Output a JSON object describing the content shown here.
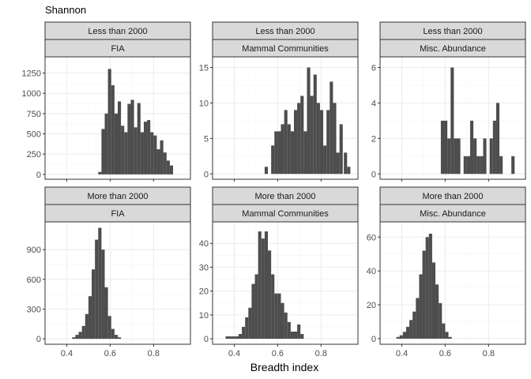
{
  "chart_data": {
    "type": "bar",
    "title": "Shannon",
    "xlabel": "Breadth index",
    "ylabel": "",
    "xlim": [
      0.3,
      0.97
    ],
    "x_ticks": [
      0.4,
      0.6,
      0.8
    ],
    "x_tick_labels": [
      "0.4",
      "0.6",
      "0.8"
    ],
    "grid": true,
    "panels": [
      {
        "row_label": "Less than 2000",
        "col_label": "FIA",
        "ylim": [
          -60,
          1450
        ],
        "y_ticks": [
          0,
          250,
          500,
          750,
          1000,
          1250
        ],
        "y_tick_labels": [
          "0",
          "250",
          "500",
          "750",
          "1000",
          "1250"
        ],
        "bins": [
          {
            "x0": 0.545,
            "x1": 0.56,
            "count": 30
          },
          {
            "x0": 0.56,
            "x1": 0.575,
            "count": 560
          },
          {
            "x0": 0.575,
            "x1": 0.59,
            "count": 750
          },
          {
            "x0": 0.59,
            "x1": 0.605,
            "count": 1300
          },
          {
            "x0": 0.605,
            "x1": 0.62,
            "count": 1100
          },
          {
            "x0": 0.62,
            "x1": 0.635,
            "count": 750
          },
          {
            "x0": 0.635,
            "x1": 0.65,
            "count": 900
          },
          {
            "x0": 0.65,
            "x1": 0.665,
            "count": 600
          },
          {
            "x0": 0.665,
            "x1": 0.68,
            "count": 520
          },
          {
            "x0": 0.68,
            "x1": 0.695,
            "count": 870
          },
          {
            "x0": 0.695,
            "x1": 0.71,
            "count": 920
          },
          {
            "x0": 0.71,
            "x1": 0.725,
            "count": 580
          },
          {
            "x0": 0.725,
            "x1": 0.74,
            "count": 880
          },
          {
            "x0": 0.74,
            "x1": 0.755,
            "count": 520
          },
          {
            "x0": 0.755,
            "x1": 0.77,
            "count": 650
          },
          {
            "x0": 0.77,
            "x1": 0.785,
            "count": 670
          },
          {
            "x0": 0.785,
            "x1": 0.8,
            "count": 520
          },
          {
            "x0": 0.8,
            "x1": 0.815,
            "count": 480
          },
          {
            "x0": 0.815,
            "x1": 0.83,
            "count": 310
          },
          {
            "x0": 0.83,
            "x1": 0.845,
            "count": 420
          },
          {
            "x0": 0.845,
            "x1": 0.86,
            "count": 270
          },
          {
            "x0": 0.86,
            "x1": 0.875,
            "count": 170
          },
          {
            "x0": 0.875,
            "x1": 0.89,
            "count": 110
          }
        ]
      },
      {
        "row_label": "Less than 2000",
        "col_label": "Mammal Communities",
        "ylim": [
          -0.75,
          16.5
        ],
        "y_ticks": [
          0,
          5,
          10,
          15
        ],
        "y_tick_labels": [
          "0",
          "5",
          "10",
          "15"
        ],
        "bins": [
          {
            "x0": 0.54,
            "x1": 0.555,
            "count": 1
          },
          {
            "x0": 0.57,
            "x1": 0.585,
            "count": 4
          },
          {
            "x0": 0.585,
            "x1": 0.6,
            "count": 6
          },
          {
            "x0": 0.6,
            "x1": 0.615,
            "count": 6
          },
          {
            "x0": 0.615,
            "x1": 0.63,
            "count": 7
          },
          {
            "x0": 0.63,
            "x1": 0.645,
            "count": 9
          },
          {
            "x0": 0.645,
            "x1": 0.66,
            "count": 7
          },
          {
            "x0": 0.66,
            "x1": 0.675,
            "count": 6
          },
          {
            "x0": 0.675,
            "x1": 0.69,
            "count": 9
          },
          {
            "x0": 0.69,
            "x1": 0.705,
            "count": 10
          },
          {
            "x0": 0.705,
            "x1": 0.72,
            "count": 11
          },
          {
            "x0": 0.72,
            "x1": 0.735,
            "count": 6
          },
          {
            "x0": 0.735,
            "x1": 0.75,
            "count": 15
          },
          {
            "x0": 0.75,
            "x1": 0.765,
            "count": 11
          },
          {
            "x0": 0.765,
            "x1": 0.78,
            "count": 14
          },
          {
            "x0": 0.78,
            "x1": 0.795,
            "count": 10
          },
          {
            "x0": 0.795,
            "x1": 0.81,
            "count": 9
          },
          {
            "x0": 0.81,
            "x1": 0.825,
            "count": 4
          },
          {
            "x0": 0.825,
            "x1": 0.84,
            "count": 9
          },
          {
            "x0": 0.84,
            "x1": 0.855,
            "count": 13
          },
          {
            "x0": 0.855,
            "x1": 0.87,
            "count": 10
          },
          {
            "x0": 0.87,
            "x1": 0.885,
            "count": 3
          },
          {
            "x0": 0.885,
            "x1": 0.9,
            "count": 7
          },
          {
            "x0": 0.905,
            "x1": 0.92,
            "count": 3
          },
          {
            "x0": 0.92,
            "x1": 0.935,
            "count": 1
          }
        ]
      },
      {
        "row_label": "Less than 2000",
        "col_label": "Misc. Abundance",
        "ylim": [
          -0.3,
          6.6
        ],
        "y_ticks": [
          0,
          2,
          4,
          6
        ],
        "y_tick_labels": [
          "0",
          "2",
          "4",
          "6"
        ],
        "bins": [
          {
            "x0": 0.58,
            "x1": 0.595,
            "count": 3
          },
          {
            "x0": 0.595,
            "x1": 0.61,
            "count": 3
          },
          {
            "x0": 0.61,
            "x1": 0.625,
            "count": 2
          },
          {
            "x0": 0.625,
            "x1": 0.64,
            "count": 6
          },
          {
            "x0": 0.64,
            "x1": 0.655,
            "count": 2
          },
          {
            "x0": 0.655,
            "x1": 0.67,
            "count": 2
          },
          {
            "x0": 0.685,
            "x1": 0.7,
            "count": 1
          },
          {
            "x0": 0.7,
            "x1": 0.715,
            "count": 1
          },
          {
            "x0": 0.715,
            "x1": 0.73,
            "count": 3
          },
          {
            "x0": 0.73,
            "x1": 0.745,
            "count": 2
          },
          {
            "x0": 0.745,
            "x1": 0.76,
            "count": 1
          },
          {
            "x0": 0.76,
            "x1": 0.775,
            "count": 1
          },
          {
            "x0": 0.775,
            "x1": 0.79,
            "count": 2
          },
          {
            "x0": 0.805,
            "x1": 0.82,
            "count": 2
          },
          {
            "x0": 0.82,
            "x1": 0.835,
            "count": 3
          },
          {
            "x0": 0.835,
            "x1": 0.85,
            "count": 4
          },
          {
            "x0": 0.85,
            "x1": 0.865,
            "count": 1
          },
          {
            "x0": 0.905,
            "x1": 0.92,
            "count": 1
          }
        ]
      },
      {
        "row_label": "More than 2000",
        "col_label": "FIA",
        "ylim": [
          -55,
          1180
        ],
        "y_ticks": [
          0,
          300,
          600,
          900
        ],
        "y_tick_labels": [
          "0",
          "300",
          "600",
          "900"
        ],
        "bins": [
          {
            "x0": 0.425,
            "x1": 0.44,
            "count": 15
          },
          {
            "x0": 0.44,
            "x1": 0.455,
            "count": 40
          },
          {
            "x0": 0.455,
            "x1": 0.47,
            "count": 70
          },
          {
            "x0": 0.47,
            "x1": 0.485,
            "count": 130
          },
          {
            "x0": 0.485,
            "x1": 0.5,
            "count": 250
          },
          {
            "x0": 0.5,
            "x1": 0.515,
            "count": 430
          },
          {
            "x0": 0.515,
            "x1": 0.53,
            "count": 700
          },
          {
            "x0": 0.53,
            "x1": 0.545,
            "count": 1000
          },
          {
            "x0": 0.545,
            "x1": 0.56,
            "count": 1120
          },
          {
            "x0": 0.56,
            "x1": 0.575,
            "count": 900
          },
          {
            "x0": 0.575,
            "x1": 0.59,
            "count": 520
          },
          {
            "x0": 0.59,
            "x1": 0.605,
            "count": 230
          },
          {
            "x0": 0.605,
            "x1": 0.62,
            "count": 100
          },
          {
            "x0": 0.62,
            "x1": 0.635,
            "count": 40
          },
          {
            "x0": 0.635,
            "x1": 0.65,
            "count": 15
          }
        ]
      },
      {
        "row_label": "More than 2000",
        "col_label": "Mammal Communities",
        "ylim": [
          -2.3,
          49
        ],
        "y_ticks": [
          0,
          10,
          20,
          30,
          40
        ],
        "y_tick_labels": [
          "0",
          "10",
          "20",
          "30",
          "40"
        ],
        "bins": [
          {
            "x0": 0.36,
            "x1": 0.375,
            "count": 1
          },
          {
            "x0": 0.375,
            "x1": 0.39,
            "count": 1
          },
          {
            "x0": 0.39,
            "x1": 0.405,
            "count": 1
          },
          {
            "x0": 0.405,
            "x1": 0.42,
            "count": 1
          },
          {
            "x0": 0.42,
            "x1": 0.435,
            "count": 2
          },
          {
            "x0": 0.435,
            "x1": 0.45,
            "count": 5
          },
          {
            "x0": 0.45,
            "x1": 0.465,
            "count": 9
          },
          {
            "x0": 0.465,
            "x1": 0.48,
            "count": 13
          },
          {
            "x0": 0.48,
            "x1": 0.495,
            "count": 23
          },
          {
            "x0": 0.495,
            "x1": 0.51,
            "count": 27
          },
          {
            "x0": 0.51,
            "x1": 0.525,
            "count": 45
          },
          {
            "x0": 0.525,
            "x1": 0.54,
            "count": 42
          },
          {
            "x0": 0.54,
            "x1": 0.555,
            "count": 45
          },
          {
            "x0": 0.555,
            "x1": 0.57,
            "count": 37
          },
          {
            "x0": 0.57,
            "x1": 0.585,
            "count": 27
          },
          {
            "x0": 0.585,
            "x1": 0.6,
            "count": 19
          },
          {
            "x0": 0.6,
            "x1": 0.615,
            "count": 19
          },
          {
            "x0": 0.615,
            "x1": 0.63,
            "count": 15
          },
          {
            "x0": 0.63,
            "x1": 0.645,
            "count": 11
          },
          {
            "x0": 0.645,
            "x1": 0.66,
            "count": 7
          },
          {
            "x0": 0.66,
            "x1": 0.675,
            "count": 3
          },
          {
            "x0": 0.675,
            "x1": 0.69,
            "count": 3
          },
          {
            "x0": 0.69,
            "x1": 0.705,
            "count": 6
          },
          {
            "x0": 0.705,
            "x1": 0.72,
            "count": 2
          }
        ]
      },
      {
        "row_label": "More than 2000",
        "col_label": "Misc. Abundance",
        "ylim": [
          -3.3,
          69
        ],
        "y_ticks": [
          0,
          20,
          40,
          60
        ],
        "y_tick_labels": [
          "0",
          "20",
          "40",
          "60"
        ],
        "bins": [
          {
            "x0": 0.375,
            "x1": 0.39,
            "count": 1
          },
          {
            "x0": 0.39,
            "x1": 0.405,
            "count": 2
          },
          {
            "x0": 0.405,
            "x1": 0.42,
            "count": 4
          },
          {
            "x0": 0.42,
            "x1": 0.435,
            "count": 7
          },
          {
            "x0": 0.435,
            "x1": 0.45,
            "count": 11
          },
          {
            "x0": 0.45,
            "x1": 0.465,
            "count": 16
          },
          {
            "x0": 0.465,
            "x1": 0.48,
            "count": 24
          },
          {
            "x0": 0.48,
            "x1": 0.495,
            "count": 38
          },
          {
            "x0": 0.495,
            "x1": 0.51,
            "count": 52
          },
          {
            "x0": 0.51,
            "x1": 0.525,
            "count": 60
          },
          {
            "x0": 0.525,
            "x1": 0.54,
            "count": 62
          },
          {
            "x0": 0.54,
            "x1": 0.555,
            "count": 45
          },
          {
            "x0": 0.555,
            "x1": 0.57,
            "count": 32
          },
          {
            "x0": 0.57,
            "x1": 0.585,
            "count": 21
          },
          {
            "x0": 0.585,
            "x1": 0.6,
            "count": 9
          },
          {
            "x0": 0.6,
            "x1": 0.615,
            "count": 4
          },
          {
            "x0": 0.615,
            "x1": 0.63,
            "count": 1
          }
        ]
      }
    ]
  }
}
